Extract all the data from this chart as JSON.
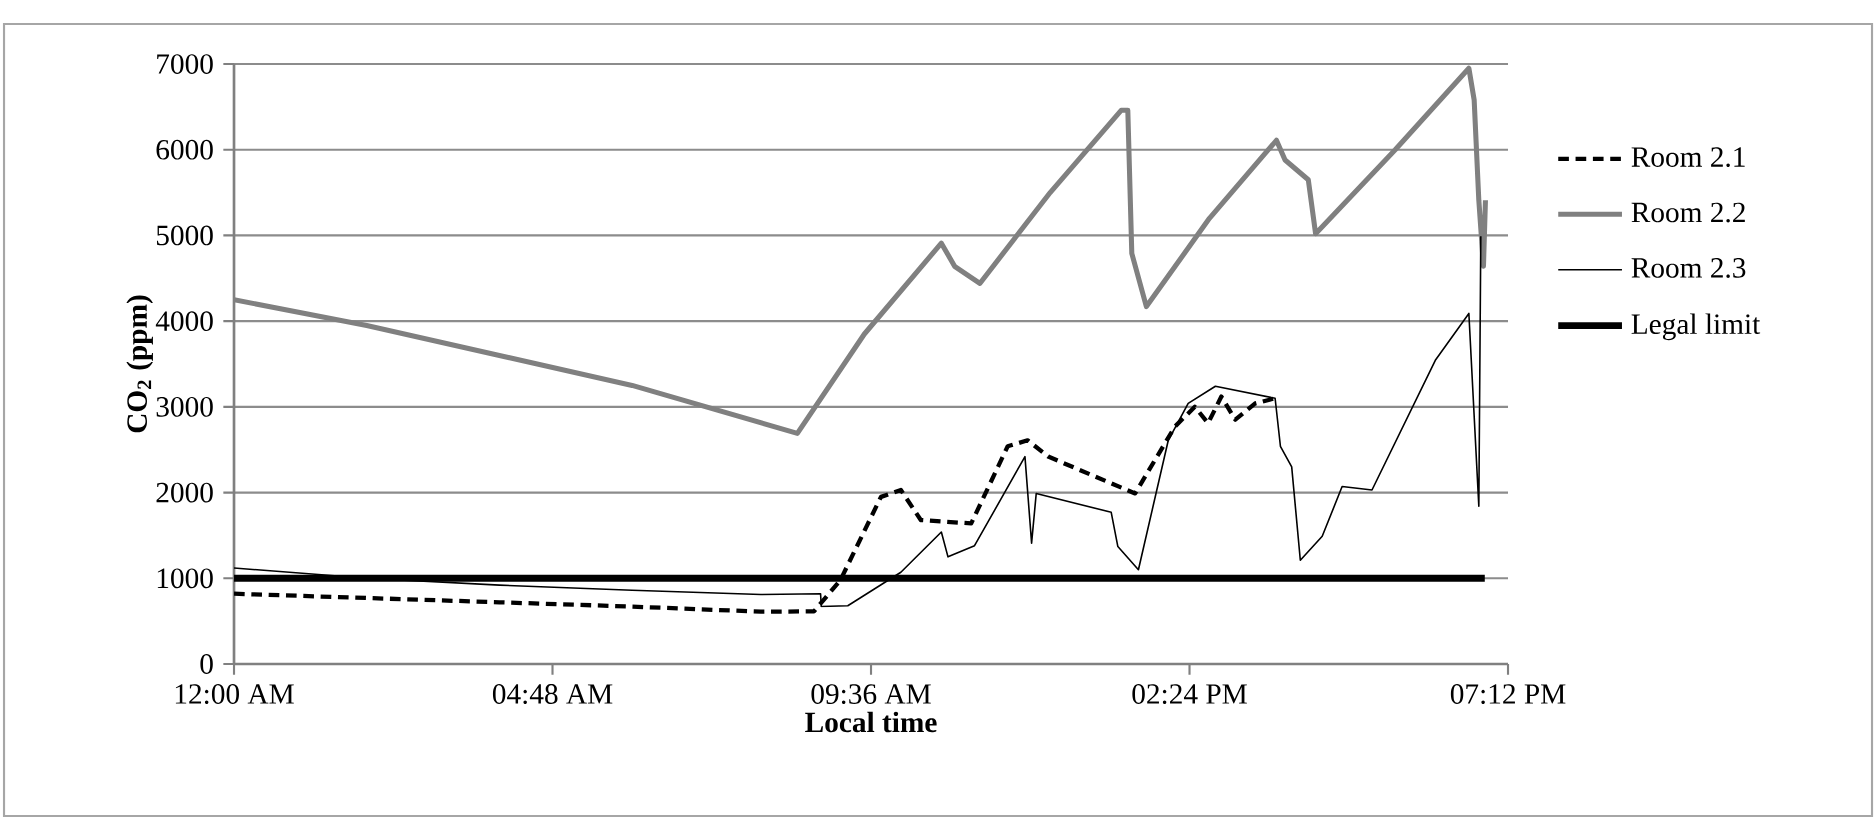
{
  "chart_data": {
    "type": "line",
    "xlabel": "Local time",
    "ylabel": "CO$_{2}$ (ppm)",
    "xlim": [
      0,
      19.2
    ],
    "ylim": [
      0,
      7000
    ],
    "xticks": [
      {
        "value": 0,
        "label": "12:00 AM"
      },
      {
        "value": 4.8,
        "label": "04:48 AM"
      },
      {
        "value": 9.6,
        "label": "09:36 AM"
      },
      {
        "value": 14.4,
        "label": "02:24 PM"
      },
      {
        "value": 19.2,
        "label": "07:12 PM"
      }
    ],
    "yticks": [
      0,
      1000,
      2000,
      3000,
      4000,
      5000,
      6000,
      7000
    ],
    "grid": "y",
    "legend": "right",
    "marker": "none",
    "series": [
      {
        "name": "Room 2.1",
        "color": "#000000",
        "line_style": "dashed",
        "x": [
          0,
          2,
          4,
          6,
          7.94,
          8.74,
          9.14,
          9.75,
          10.05,
          10.35,
          11.11,
          11.66,
          11.96,
          12.27,
          13.58,
          14.18,
          14.48,
          14.68,
          14.88,
          15.09,
          15.39,
          15.69
        ],
        "values": [
          820,
          770,
          720,
          670,
          610,
          614,
          980,
          1950,
          2030,
          1680,
          1640,
          2540,
          2610,
          2420,
          1990,
          2770,
          3000,
          2810,
          3120,
          2850,
          3040,
          3100
        ]
      },
      {
        "name": "Room 2.2",
        "color": "#808080",
        "line_style": "solid",
        "x": [
          0,
          2,
          4,
          6,
          8.49,
          9.5,
          10.66,
          10.86,
          11.24,
          12.3,
          13.37,
          13.47,
          13.53,
          13.75,
          14.7,
          15.71,
          15.84,
          16.19,
          16.3,
          17.5,
          18.61,
          18.69,
          18.76,
          18.83,
          18.86
        ],
        "values": [
          4250,
          3950,
          3600,
          3250,
          2690,
          3850,
          4910,
          4640,
          4440,
          5500,
          6460,
          6460,
          4790,
          4170,
          5200,
          6110,
          5880,
          5650,
          5020,
          6000,
          6950,
          6580,
          5410,
          4640,
          5410
        ]
      },
      {
        "name": "Room 2.3",
        "color": "#000000",
        "line_style": "solid",
        "x": [
          0,
          2,
          4,
          6,
          7.94,
          8.84,
          8.85,
          9.25,
          10.05,
          10.66,
          10.76,
          11.16,
          11.92,
          12.02,
          12.09,
          13.22,
          13.32,
          13.63,
          14.08,
          14.38,
          14.79,
          15.69,
          15.77,
          15.94,
          16.07,
          16.4,
          16.7,
          17.15,
          18.11,
          18.61,
          18.76,
          18.79
        ],
        "values": [
          1120,
          1000,
          920,
          860,
          810,
          820,
          670,
          680,
          1070,
          1540,
          1250,
          1380,
          2420,
          1410,
          1990,
          1770,
          1370,
          1100,
          2610,
          3040,
          3240,
          3100,
          2540,
          2300,
          1210,
          1490,
          2070,
          2030,
          3550,
          4090,
          1840,
          4990
        ]
      },
      {
        "name": "Legal limit",
        "color": "#000000",
        "line_style": "solid",
        "x": [
          0,
          18.85
        ],
        "values": [
          1000,
          1000
        ]
      }
    ]
  }
}
